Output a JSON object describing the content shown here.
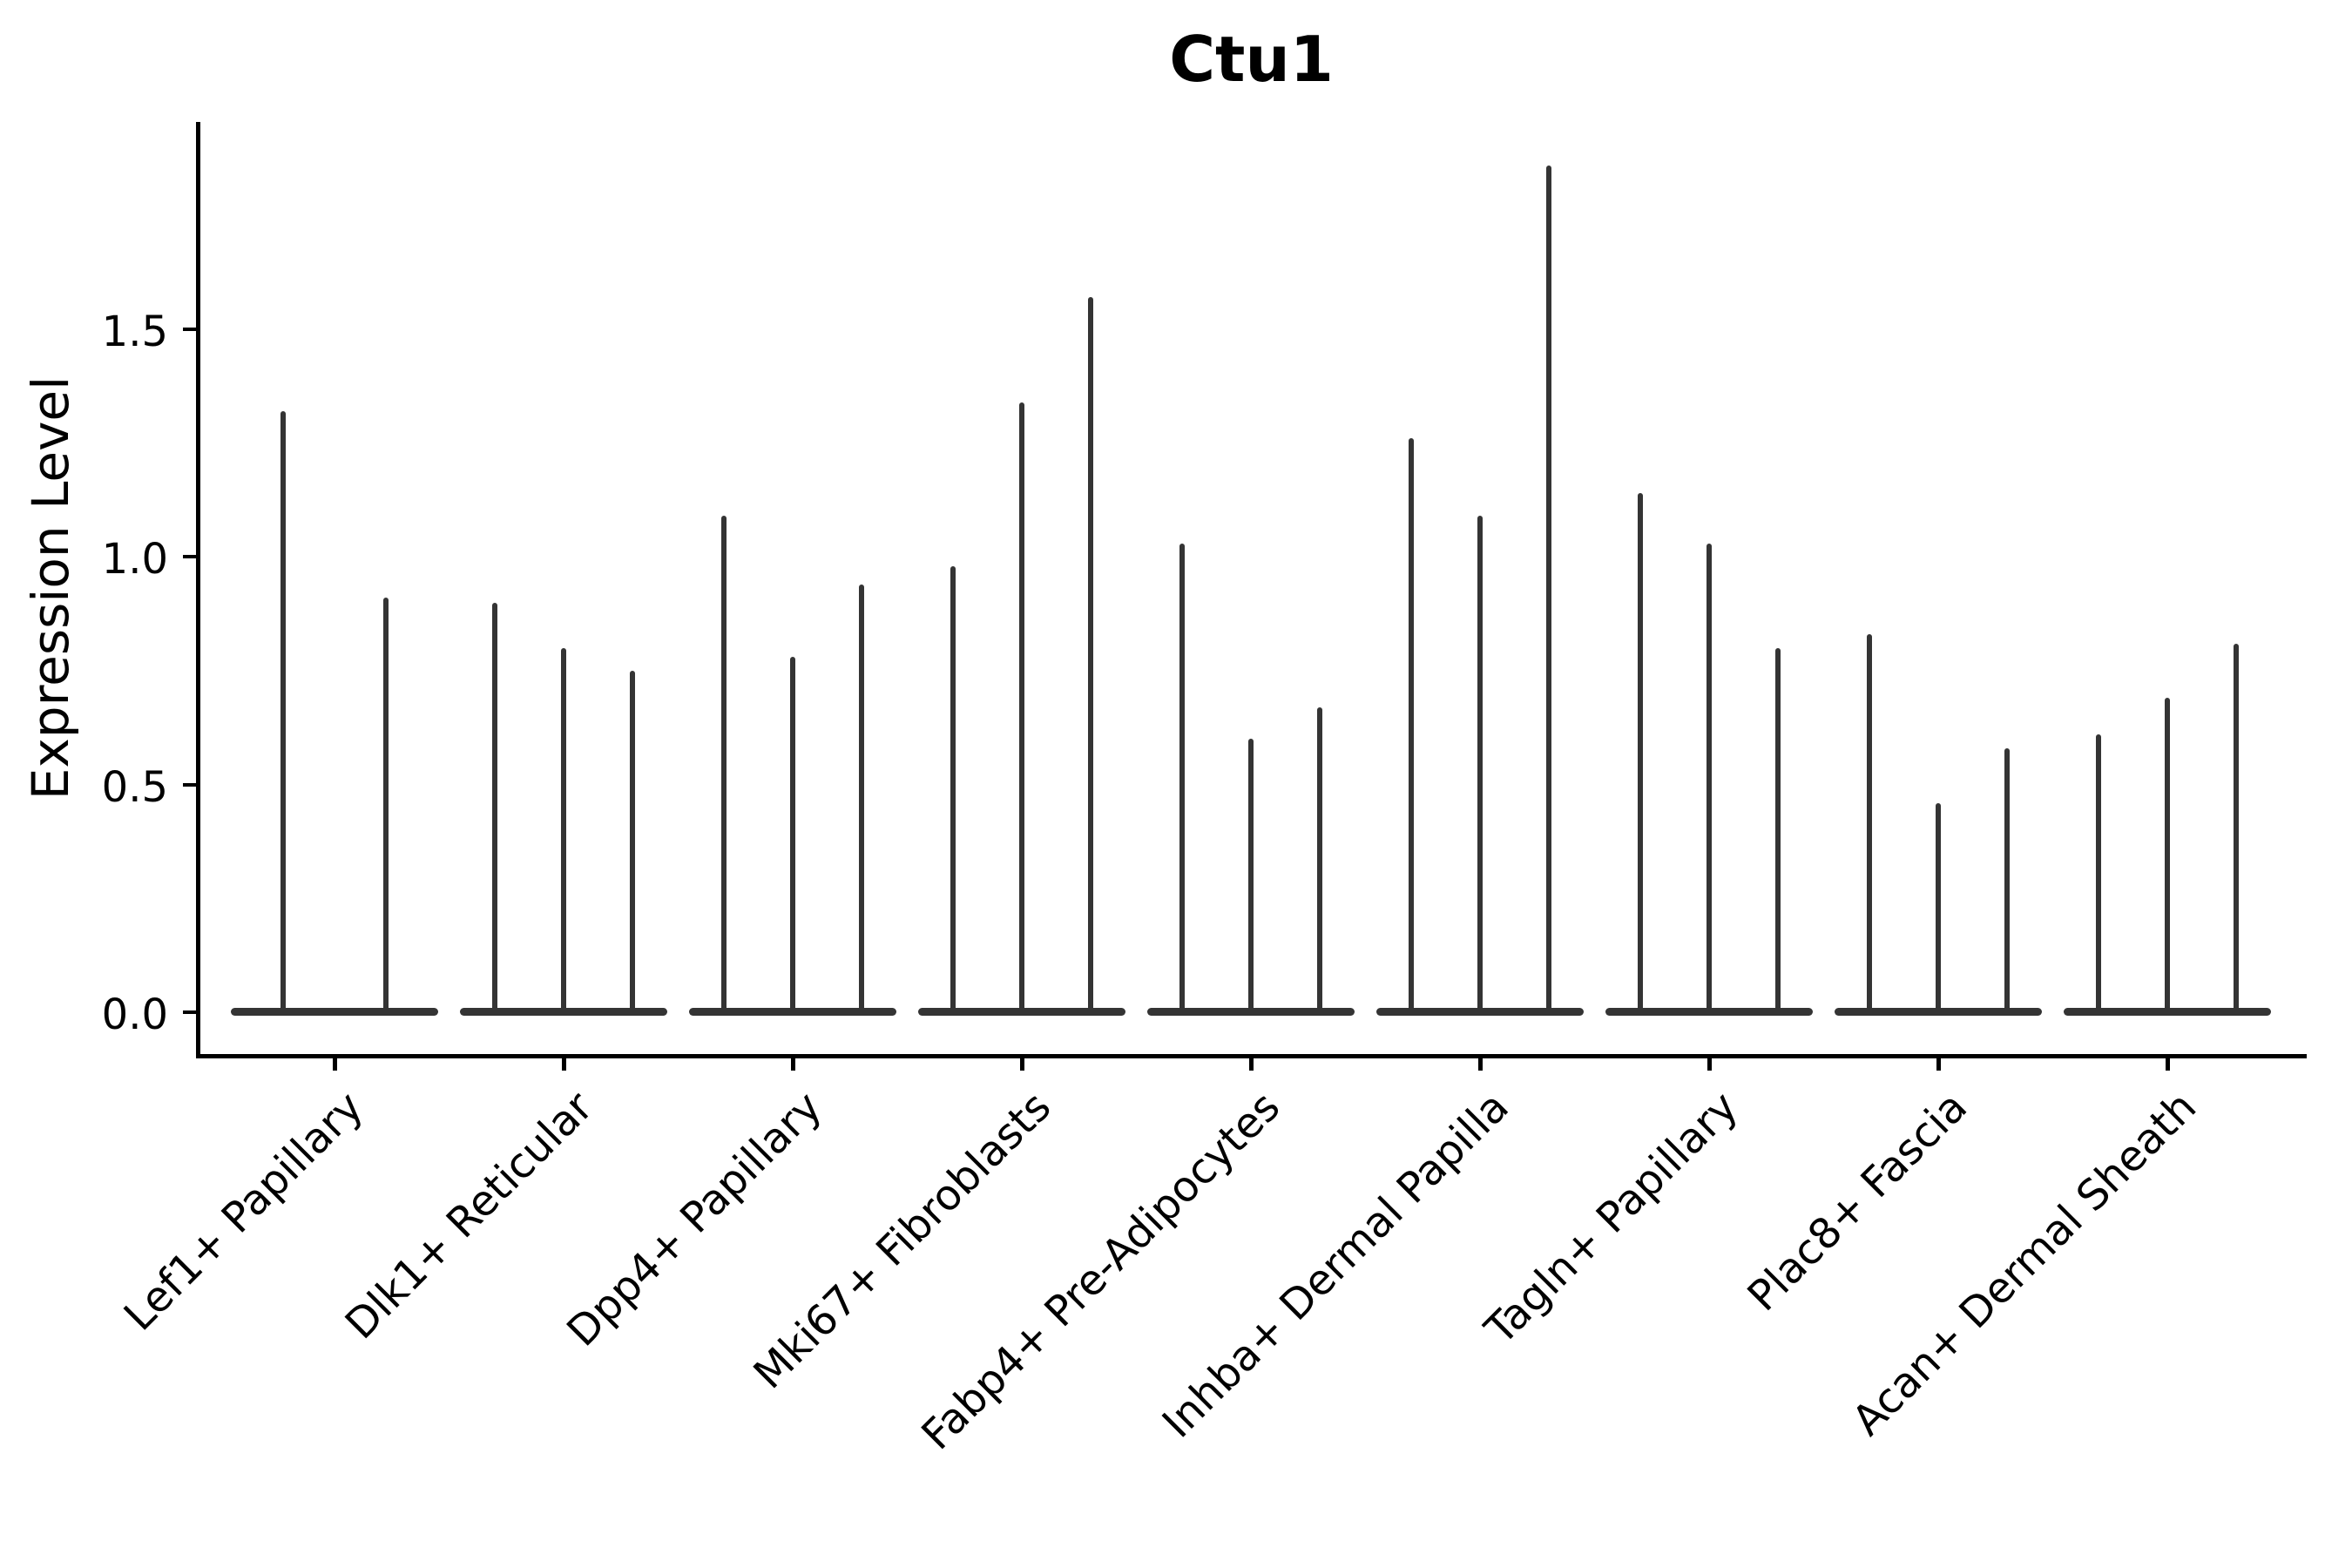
{
  "chart_data": {
    "type": "violin",
    "title": "Ctu1",
    "ylabel": "Expression Level",
    "xlabel": "",
    "yticks": [
      0.0,
      0.5,
      1.0,
      1.5
    ],
    "ylim": [
      -0.09,
      1.96
    ],
    "grid": false,
    "legend_position": "none",
    "style": {
      "violin_color": "#343434",
      "spine_color": "#000000",
      "text_color": "#000000",
      "background_color": "#ffffff"
    },
    "groups": [
      {
        "label": "Lef1+ Papillary",
        "values": [
          1.32,
          0.91
        ]
      },
      {
        "label": "Dlk1+ Reticular",
        "values": [
          0.9,
          0.8,
          0.75
        ]
      },
      {
        "label": "Dpp4+ Papillary",
        "values": [
          1.09,
          0.78,
          0.94
        ]
      },
      {
        "label": "Mki67+ Fibroblasts",
        "values": [
          0.98,
          1.34,
          1.57
        ]
      },
      {
        "label": "Fabp4+ Pre-Adipocytes",
        "values": [
          1.03,
          0.6,
          0.67
        ]
      },
      {
        "label": "Inhba+ Dermal Papilla",
        "values": [
          1.26,
          1.09,
          1.86
        ]
      },
      {
        "label": "Tagln+ Papillary",
        "values": [
          1.14,
          1.03,
          0.8
        ]
      },
      {
        "label": "Plac8+ Fascia",
        "values": [
          0.83,
          0.46,
          0.58
        ]
      },
      {
        "label": "Acan+ Dermal Sheath",
        "values": [
          0.61,
          0.69,
          0.81
        ]
      }
    ]
  }
}
